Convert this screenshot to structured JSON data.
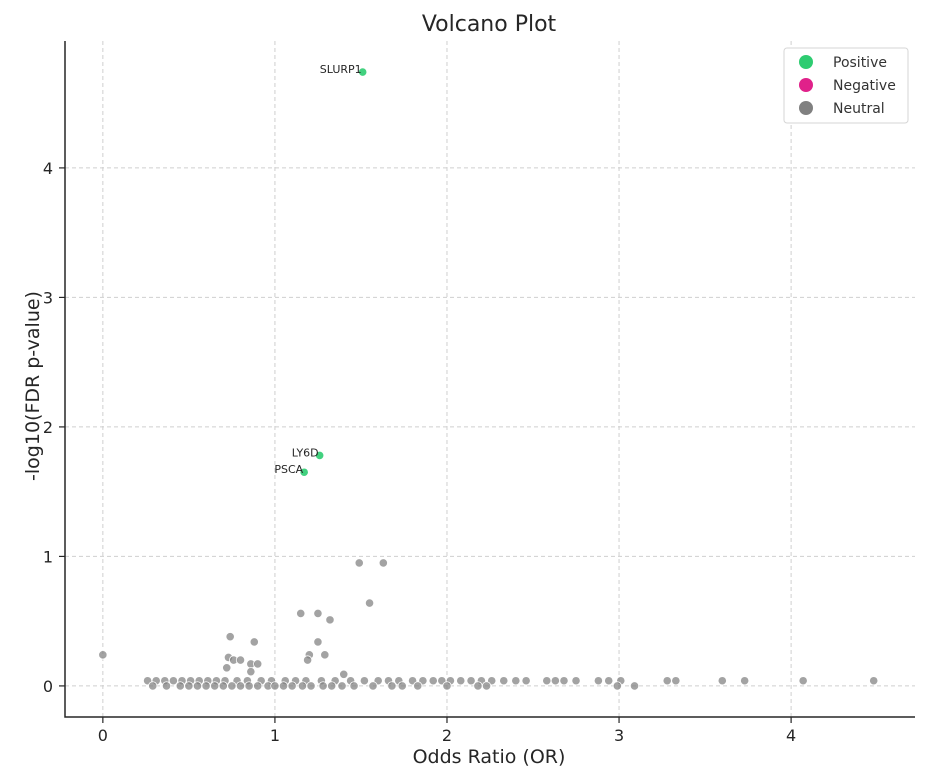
{
  "chart_data": {
    "type": "scatter",
    "title": "Volcano Plot",
    "xlabel": "Odds Ratio (OR)",
    "ylabel": "-log10(FDR p-value)",
    "xlim": [
      -0.22,
      4.72
    ],
    "ylim": [
      -0.24,
      4.98
    ],
    "xticks": [
      0,
      1,
      2,
      3,
      4
    ],
    "yticks": [
      0,
      1,
      2,
      3,
      4
    ],
    "grid": true,
    "legend_position": "top-right",
    "series": [
      {
        "name": "Positive",
        "color": "#2ecc71",
        "points": [
          {
            "x": 1.51,
            "y": 4.74,
            "label": "SLURP1"
          },
          {
            "x": 1.26,
            "y": 1.78,
            "label": "LY6D"
          },
          {
            "x": 1.17,
            "y": 1.65,
            "label": "PSCA"
          }
        ]
      },
      {
        "name": "Negative",
        "color": "#e0218a",
        "points": []
      },
      {
        "name": "Neutral",
        "color": "#808080",
        "points": [
          {
            "x": 0.0,
            "y": 0.24
          },
          {
            "x": 1.49,
            "y": 0.95
          },
          {
            "x": 1.63,
            "y": 0.95
          },
          {
            "x": 1.55,
            "y": 0.64
          },
          {
            "x": 1.15,
            "y": 0.56
          },
          {
            "x": 1.25,
            "y": 0.56
          },
          {
            "x": 1.32,
            "y": 0.51
          },
          {
            "x": 0.74,
            "y": 0.38
          },
          {
            "x": 0.88,
            "y": 0.34
          },
          {
            "x": 1.25,
            "y": 0.34
          },
          {
            "x": 1.29,
            "y": 0.24
          },
          {
            "x": 1.2,
            "y": 0.24
          },
          {
            "x": 1.19,
            "y": 0.2
          },
          {
            "x": 0.73,
            "y": 0.22
          },
          {
            "x": 0.76,
            "y": 0.2
          },
          {
            "x": 0.8,
            "y": 0.2
          },
          {
            "x": 0.86,
            "y": 0.17
          },
          {
            "x": 0.9,
            "y": 0.17
          },
          {
            "x": 0.72,
            "y": 0.14
          },
          {
            "x": 0.86,
            "y": 0.11
          },
          {
            "x": 1.4,
            "y": 0.09
          },
          {
            "x": 0.26,
            "y": 0.04
          },
          {
            "x": 0.31,
            "y": 0.04
          },
          {
            "x": 0.36,
            "y": 0.04
          },
          {
            "x": 0.41,
            "y": 0.04
          },
          {
            "x": 0.46,
            "y": 0.04
          },
          {
            "x": 0.51,
            "y": 0.04
          },
          {
            "x": 0.56,
            "y": 0.04
          },
          {
            "x": 0.61,
            "y": 0.04
          },
          {
            "x": 0.66,
            "y": 0.04
          },
          {
            "x": 0.71,
            "y": 0.04
          },
          {
            "x": 0.78,
            "y": 0.04
          },
          {
            "x": 0.84,
            "y": 0.04
          },
          {
            "x": 0.92,
            "y": 0.04
          },
          {
            "x": 0.98,
            "y": 0.04
          },
          {
            "x": 1.06,
            "y": 0.04
          },
          {
            "x": 1.12,
            "y": 0.04
          },
          {
            "x": 1.18,
            "y": 0.04
          },
          {
            "x": 1.27,
            "y": 0.04
          },
          {
            "x": 1.35,
            "y": 0.04
          },
          {
            "x": 1.44,
            "y": 0.04
          },
          {
            "x": 1.52,
            "y": 0.04
          },
          {
            "x": 1.6,
            "y": 0.04
          },
          {
            "x": 1.66,
            "y": 0.04
          },
          {
            "x": 1.72,
            "y": 0.04
          },
          {
            "x": 1.8,
            "y": 0.04
          },
          {
            "x": 1.86,
            "y": 0.04
          },
          {
            "x": 1.92,
            "y": 0.04
          },
          {
            "x": 1.97,
            "y": 0.04
          },
          {
            "x": 2.02,
            "y": 0.04
          },
          {
            "x": 2.08,
            "y": 0.04
          },
          {
            "x": 2.14,
            "y": 0.04
          },
          {
            "x": 2.2,
            "y": 0.04
          },
          {
            "x": 2.26,
            "y": 0.04
          },
          {
            "x": 2.33,
            "y": 0.04
          },
          {
            "x": 2.4,
            "y": 0.04
          },
          {
            "x": 2.46,
            "y": 0.04
          },
          {
            "x": 2.58,
            "y": 0.04
          },
          {
            "x": 2.63,
            "y": 0.04
          },
          {
            "x": 2.68,
            "y": 0.04
          },
          {
            "x": 2.75,
            "y": 0.04
          },
          {
            "x": 2.88,
            "y": 0.04
          },
          {
            "x": 2.94,
            "y": 0.04
          },
          {
            "x": 3.01,
            "y": 0.04
          },
          {
            "x": 3.28,
            "y": 0.04
          },
          {
            "x": 3.33,
            "y": 0.04
          },
          {
            "x": 3.6,
            "y": 0.04
          },
          {
            "x": 3.73,
            "y": 0.04
          },
          {
            "x": 4.07,
            "y": 0.04
          },
          {
            "x": 4.48,
            "y": 0.04
          },
          {
            "x": 0.29,
            "y": 0.0
          },
          {
            "x": 0.37,
            "y": 0.0
          },
          {
            "x": 0.45,
            "y": 0.0
          },
          {
            "x": 0.5,
            "y": 0.0
          },
          {
            "x": 0.55,
            "y": 0.0
          },
          {
            "x": 0.6,
            "y": 0.0
          },
          {
            "x": 0.65,
            "y": 0.0
          },
          {
            "x": 0.7,
            "y": 0.0
          },
          {
            "x": 0.75,
            "y": 0.0
          },
          {
            "x": 0.8,
            "y": 0.0
          },
          {
            "x": 0.85,
            "y": 0.0
          },
          {
            "x": 0.9,
            "y": 0.0
          },
          {
            "x": 0.96,
            "y": 0.0
          },
          {
            "x": 1.0,
            "y": 0.0
          },
          {
            "x": 1.05,
            "y": 0.0
          },
          {
            "x": 1.1,
            "y": 0.0
          },
          {
            "x": 1.16,
            "y": 0.0
          },
          {
            "x": 1.21,
            "y": 0.0
          },
          {
            "x": 1.28,
            "y": 0.0
          },
          {
            "x": 1.33,
            "y": 0.0
          },
          {
            "x": 1.39,
            "y": 0.0
          },
          {
            "x": 1.46,
            "y": 0.0
          },
          {
            "x": 1.57,
            "y": 0.0
          },
          {
            "x": 1.68,
            "y": 0.0
          },
          {
            "x": 1.74,
            "y": 0.0
          },
          {
            "x": 1.83,
            "y": 0.0
          },
          {
            "x": 2.0,
            "y": 0.0
          },
          {
            "x": 2.18,
            "y": 0.0
          },
          {
            "x": 2.23,
            "y": 0.0
          },
          {
            "x": 2.99,
            "y": 0.0
          },
          {
            "x": 3.09,
            "y": 0.0
          }
        ]
      }
    ]
  }
}
